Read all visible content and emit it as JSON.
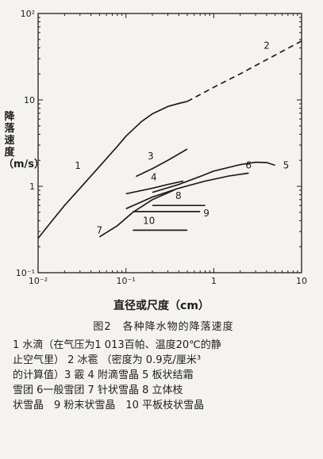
{
  "chart_data": {
    "type": "line",
    "xlabel": "直径或尺度（cm）",
    "ylabel": "降落速度（m/s）",
    "xscale": "log",
    "yscale": "log",
    "xlim": [
      0.01,
      10
    ],
    "ylim": [
      0.1,
      100
    ],
    "x_ticks": [
      "10⁻²",
      "10⁻¹",
      "1",
      "10"
    ],
    "y_ticks": [
      "10⁻¹",
      "1",
      "10",
      "10²"
    ],
    "series": [
      {
        "name": "1",
        "style": "solid",
        "x": [
          0.01,
          0.015,
          0.02,
          0.03,
          0.05,
          0.08,
          0.1,
          0.15,
          0.2,
          0.3,
          0.4,
          0.5
        ],
        "y": [
          0.25,
          0.42,
          0.6,
          0.95,
          1.7,
          2.9,
          3.8,
          5.6,
          6.9,
          8.4,
          9.1,
          9.6
        ]
      },
      {
        "name": "2",
        "style": "dashed",
        "x": [
          0.5,
          1.0,
          2.0,
          5.0,
          10.0
        ],
        "y": [
          9.6,
          14.0,
          20.0,
          33.0,
          48.0
        ]
      },
      {
        "name": "3",
        "style": "solid",
        "x": [
          0.13,
          0.2,
          0.3,
          0.5
        ],
        "y": [
          1.3,
          1.6,
          2.0,
          2.7
        ]
      },
      {
        "name": "4",
        "style": "solid",
        "x": [
          0.1,
          0.2,
          0.3,
          0.45
        ],
        "y": [
          0.82,
          0.95,
          1.05,
          1.15
        ]
      },
      {
        "name": "5",
        "style": "solid",
        "x": [
          0.2,
          0.4,
          0.7,
          1.0,
          2.0,
          3.0,
          4.0,
          5.0
        ],
        "y": [
          0.85,
          1.05,
          1.3,
          1.5,
          1.78,
          1.9,
          1.88,
          1.75
        ]
      },
      {
        "name": "6",
        "style": "solid",
        "x": [
          0.1,
          0.2,
          0.4,
          0.8,
          1.5,
          2.5
        ],
        "y": [
          0.55,
          0.75,
          0.95,
          1.15,
          1.32,
          1.42
        ]
      },
      {
        "name": "7",
        "style": "solid",
        "x": [
          0.05,
          0.08,
          0.12,
          0.2,
          0.35
        ],
        "y": [
          0.26,
          0.35,
          0.5,
          0.7,
          0.9
        ]
      },
      {
        "name": "8",
        "style": "solid",
        "x": [
          0.2,
          0.8
        ],
        "y": [
          0.6,
          0.6
        ]
      },
      {
        "name": "9",
        "style": "solid",
        "x": [
          0.12,
          0.7
        ],
        "y": [
          0.51,
          0.51
        ]
      },
      {
        "name": "10",
        "style": "solid",
        "x": [
          0.12,
          0.5
        ],
        "y": [
          0.31,
          0.31
        ]
      }
    ]
  },
  "caption": {
    "title": "图2　各种降水物的降落速度",
    "lines": [
      "1 水滴（在气压为1 013百帕、温度20℃的静",
      "止空气里） 2 冰雹 （密度为 0.9克/厘米³",
      "的计算值）3 霰 4 附滴雪晶 5 板状结霜",
      "雪团 6一般雪团 7 针状雪晶 8 立体枝",
      "状雪晶　9 粉末状雪晶　10 平板枝状雪晶"
    ]
  }
}
